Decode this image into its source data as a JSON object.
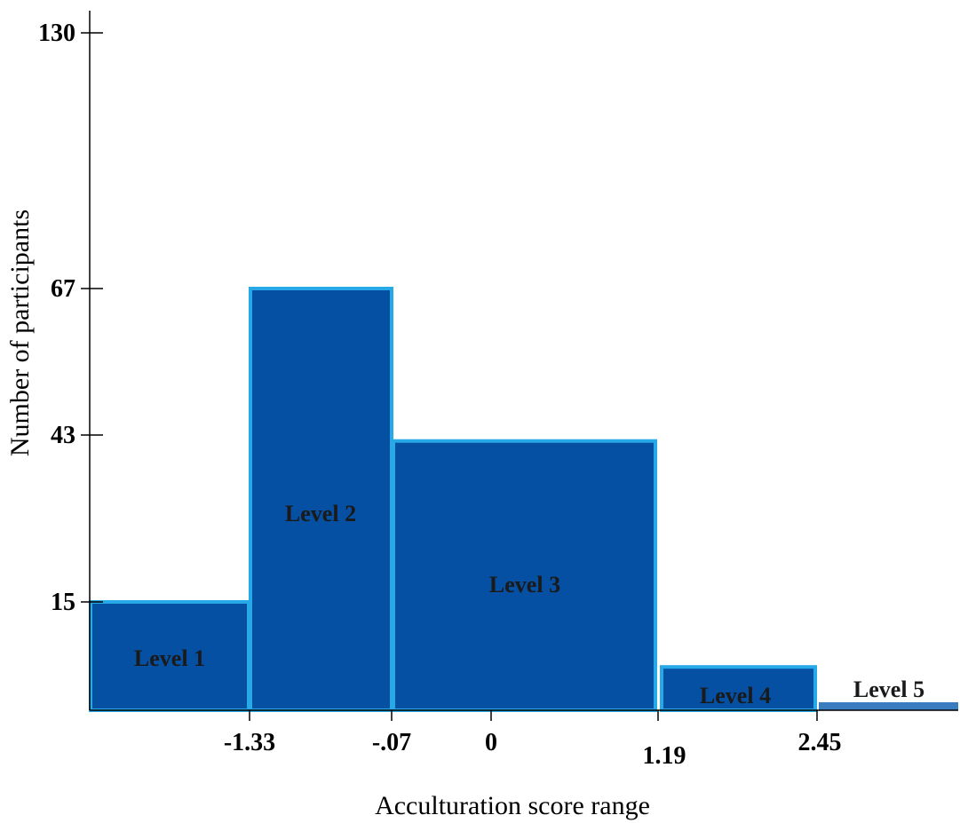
{
  "chart_data": {
    "type": "bar",
    "title": "",
    "xlabel": "Acculturation score range",
    "ylabel": "Number of participants",
    "y_ticks": [
      15,
      43,
      67,
      130
    ],
    "x_ticks": [
      "-1.33",
      "-.07",
      "0",
      "1.19",
      "2.45"
    ],
    "categories": [
      "Level 1",
      "Level 2",
      "Level 3",
      "Level 4",
      "Level 5"
    ],
    "values": [
      15,
      67,
      42,
      6,
      1
    ],
    "grid": false,
    "legend": "none",
    "colors": {
      "bar_fill": "#0550a3",
      "bar_edge": "#27a9e8",
      "level5_fill": "#3a7cc0",
      "axis": "#000000"
    }
  }
}
